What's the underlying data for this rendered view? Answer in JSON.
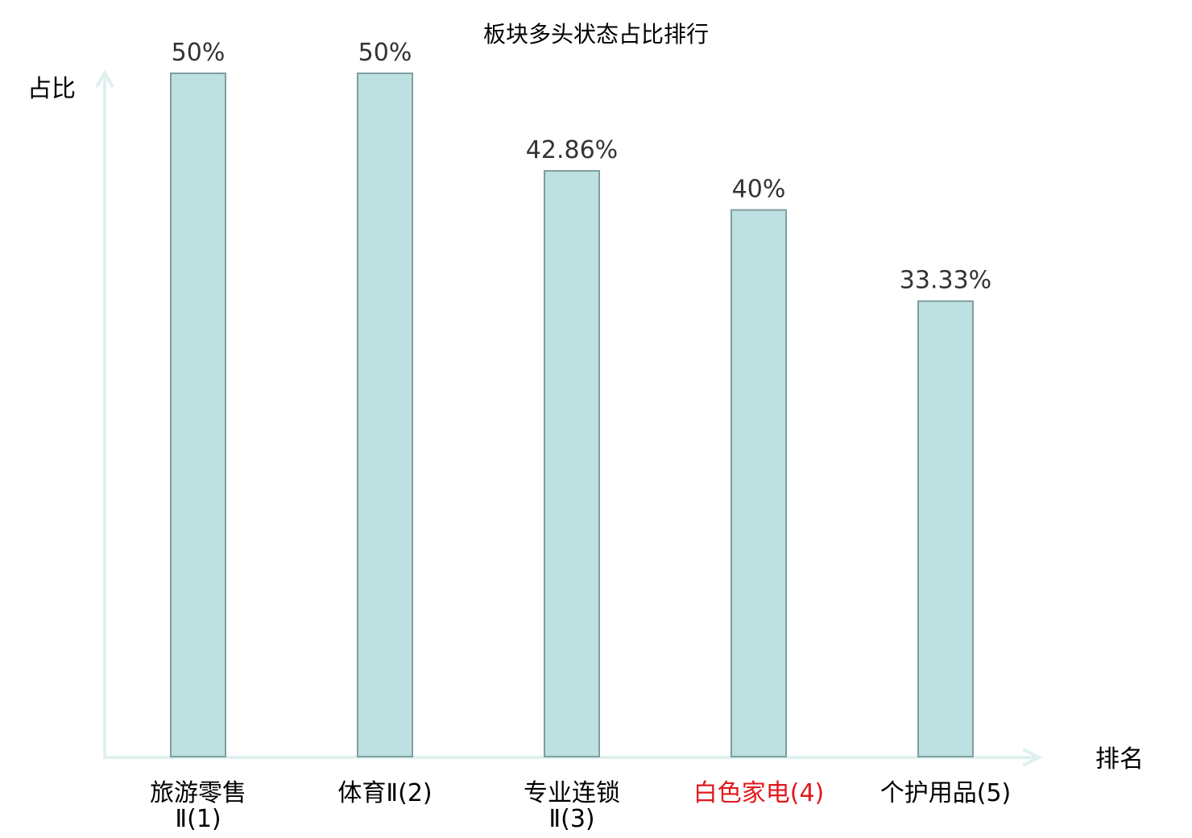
{
  "chart_data": {
    "type": "bar",
    "title": "板块多头状态占比排行",
    "xlabel": "排名",
    "ylabel": "占比",
    "categories": [
      [
        "旅游零售",
        "Ⅱ(1)"
      ],
      [
        "体育Ⅱ(2)"
      ],
      [
        "专业连锁",
        "Ⅱ(3)"
      ],
      [
        "白色家电(4)"
      ],
      [
        "个护用品(5)"
      ]
    ],
    "values": [
      50,
      50,
      42.86,
      40,
      33.33
    ],
    "value_labels": [
      "50%",
      "50%",
      "42.86%",
      "40%",
      "33.33%"
    ],
    "highlight_index": 3,
    "ylim": [
      0,
      50
    ],
    "grid": false,
    "colors": {
      "bar_fill": "#bde0e1",
      "bar_stroke": "#7f9ea0",
      "axis": "#dff1ee",
      "text": "#333333",
      "label": "#000000",
      "highlight": "#e0191c"
    }
  }
}
